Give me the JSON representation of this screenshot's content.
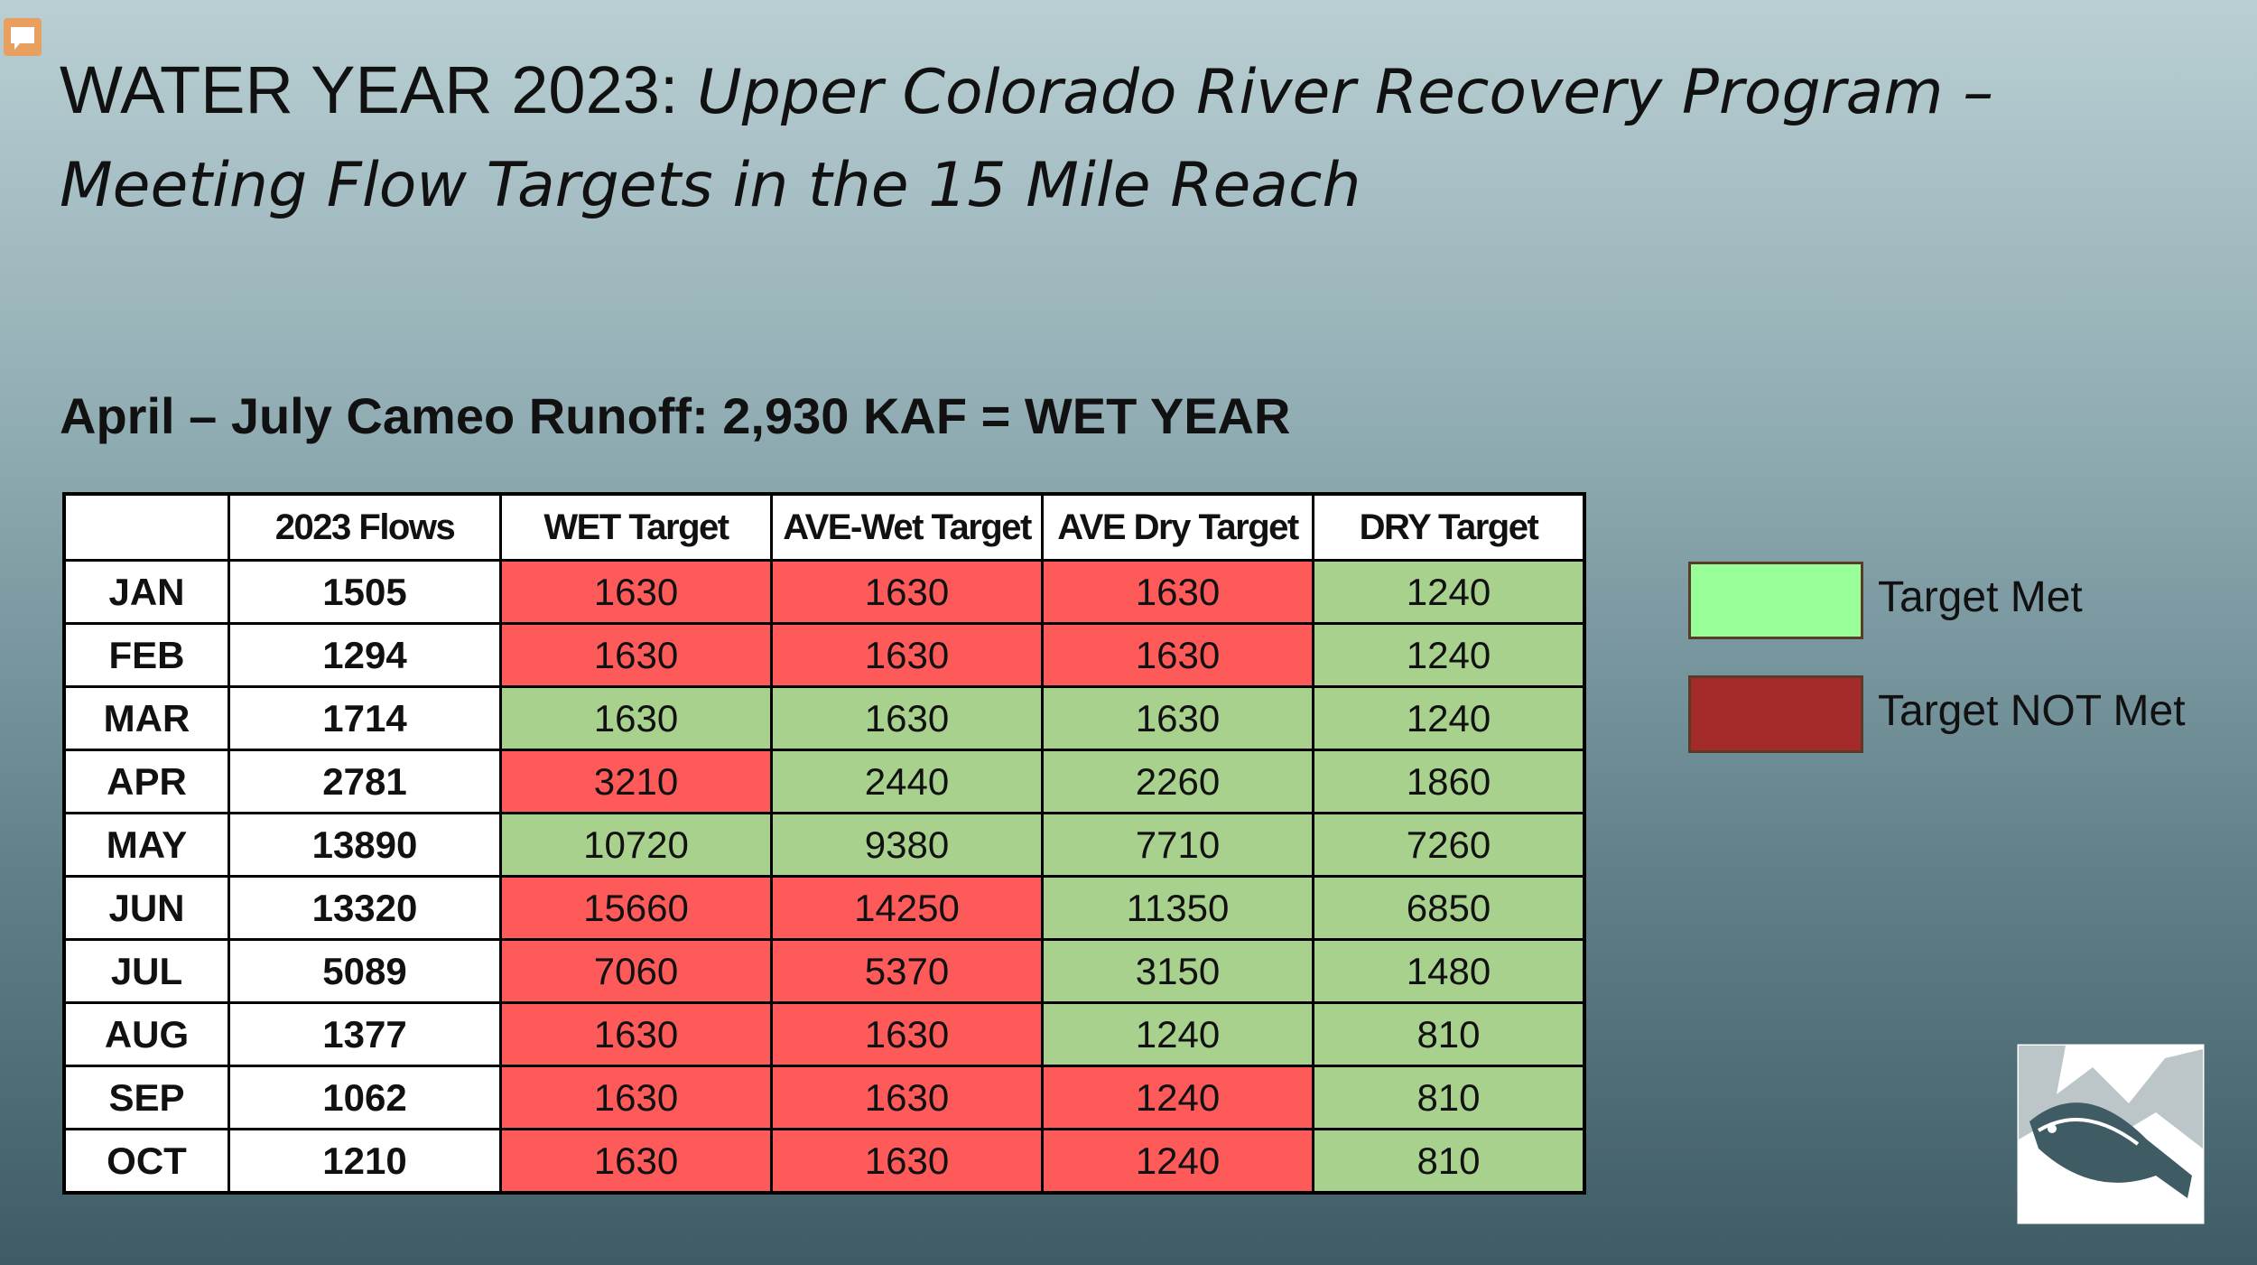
{
  "title": {
    "main": "WATER YEAR 2023:",
    "italic": "Upper Colorado River Recovery Program – Meeting Flow Targets in the 15 Mile Reach"
  },
  "subtitle": "April – July Cameo Runoff: 2,930 KAF = WET YEAR",
  "table": {
    "headers": [
      "",
      "2023 Flows",
      "WET Target",
      "AVE-Wet Target",
      "AVE Dry Target",
      "DRY Target"
    ],
    "met_color": "#a9d18e",
    "not_met_color": "#ff5a5a",
    "rows": [
      {
        "month": "JAN",
        "flow": 1505,
        "targets": [
          1630,
          1630,
          1630,
          1240
        ]
      },
      {
        "month": "FEB",
        "flow": 1294,
        "targets": [
          1630,
          1630,
          1630,
          1240
        ]
      },
      {
        "month": "MAR",
        "flow": 1714,
        "targets": [
          1630,
          1630,
          1630,
          1240
        ]
      },
      {
        "month": "APR",
        "flow": 2781,
        "targets": [
          3210,
          2440,
          2260,
          1860
        ]
      },
      {
        "month": "MAY",
        "flow": 13890,
        "targets": [
          10720,
          9380,
          7710,
          7260
        ]
      },
      {
        "month": "JUN",
        "flow": 13320,
        "targets": [
          15660,
          14250,
          11350,
          6850
        ]
      },
      {
        "month": "JUL",
        "flow": 5089,
        "targets": [
          7060,
          5370,
          3150,
          1480
        ]
      },
      {
        "month": "AUG",
        "flow": 1377,
        "targets": [
          1630,
          1630,
          1240,
          810
        ]
      },
      {
        "month": "SEP",
        "flow": 1062,
        "targets": [
          1630,
          1630,
          1240,
          810
        ]
      },
      {
        "month": "OCT",
        "flow": 1210,
        "targets": [
          1630,
          1630,
          1240,
          810
        ]
      }
    ]
  },
  "legend": [
    {
      "label": "Target Met",
      "color": "#99ff99"
    },
    {
      "label": "Target NOT Met",
      "color": "#a52a2a"
    }
  ]
}
